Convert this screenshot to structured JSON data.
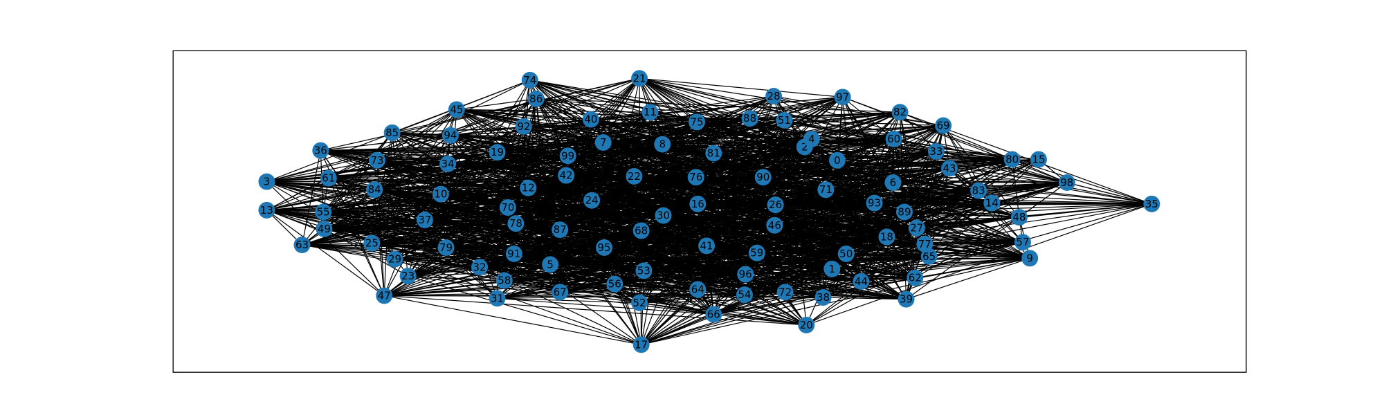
{
  "nodes": [
    {
      "label": "0"
    },
    {
      "label": "1"
    },
    {
      "label": "2"
    },
    {
      "label": "3"
    },
    {
      "label": "4"
    },
    {
      "label": "5"
    },
    {
      "label": "6"
    },
    {
      "label": "7"
    },
    {
      "label": "8"
    },
    {
      "label": "9"
    },
    {
      "label": "10"
    },
    {
      "label": "11"
    },
    {
      "label": "12"
    },
    {
      "label": "13"
    },
    {
      "label": "14"
    },
    {
      "label": "15"
    },
    {
      "label": "16"
    },
    {
      "label": "17"
    },
    {
      "label": "18"
    },
    {
      "label": "19"
    },
    {
      "label": "20"
    },
    {
      "label": "21"
    },
    {
      "label": "22"
    },
    {
      "label": "23"
    },
    {
      "label": "24"
    },
    {
      "label": "25"
    },
    {
      "label": "26"
    },
    {
      "label": "27"
    },
    {
      "label": "28"
    },
    {
      "label": "29"
    },
    {
      "label": "30"
    },
    {
      "label": "31"
    },
    {
      "label": "32"
    },
    {
      "label": "33"
    },
    {
      "label": "34"
    },
    {
      "label": "35"
    },
    {
      "label": "36"
    },
    {
      "label": "37"
    },
    {
      "label": "38"
    },
    {
      "label": "39"
    },
    {
      "label": "40"
    },
    {
      "label": "41"
    },
    {
      "label": "42"
    },
    {
      "label": "43"
    },
    {
      "label": "44"
    },
    {
      "label": "45"
    },
    {
      "label": "46"
    },
    {
      "label": "47"
    },
    {
      "label": "48"
    },
    {
      "label": "49"
    },
    {
      "label": "50"
    },
    {
      "label": "51"
    },
    {
      "label": "52"
    },
    {
      "label": "53"
    },
    {
      "label": "54"
    },
    {
      "label": "55"
    },
    {
      "label": "56"
    },
    {
      "label": "57"
    },
    {
      "label": "58"
    },
    {
      "label": "59"
    },
    {
      "label": "60"
    },
    {
      "label": "61"
    },
    {
      "label": "62"
    },
    {
      "label": "63"
    },
    {
      "label": "64"
    },
    {
      "label": "65"
    },
    {
      "label": "66"
    },
    {
      "label": "67"
    },
    {
      "label": "68"
    },
    {
      "label": "69"
    },
    {
      "label": "70"
    },
    {
      "label": "71"
    },
    {
      "label": "72"
    },
    {
      "label": "73"
    },
    {
      "label": "74"
    },
    {
      "label": "75"
    },
    {
      "label": "76"
    },
    {
      "label": "77"
    },
    {
      "label": "78"
    },
    {
      "label": "79"
    },
    {
      "label": "80"
    },
    {
      "label": "81"
    },
    {
      "label": "82"
    },
    {
      "label": "83"
    },
    {
      "label": "84"
    },
    {
      "label": "85"
    },
    {
      "label": "86"
    },
    {
      "label": "87"
    },
    {
      "label": "88"
    },
    {
      "label": "89"
    },
    {
      "label": "90"
    },
    {
      "label": "91"
    },
    {
      "label": "92"
    },
    {
      "label": "93"
    },
    {
      "label": "94"
    },
    {
      "label": "95"
    },
    {
      "label": "96"
    },
    {
      "label": "97"
    },
    {
      "label": "98"
    },
    {
      "label": "99"
    }
  ]
}
